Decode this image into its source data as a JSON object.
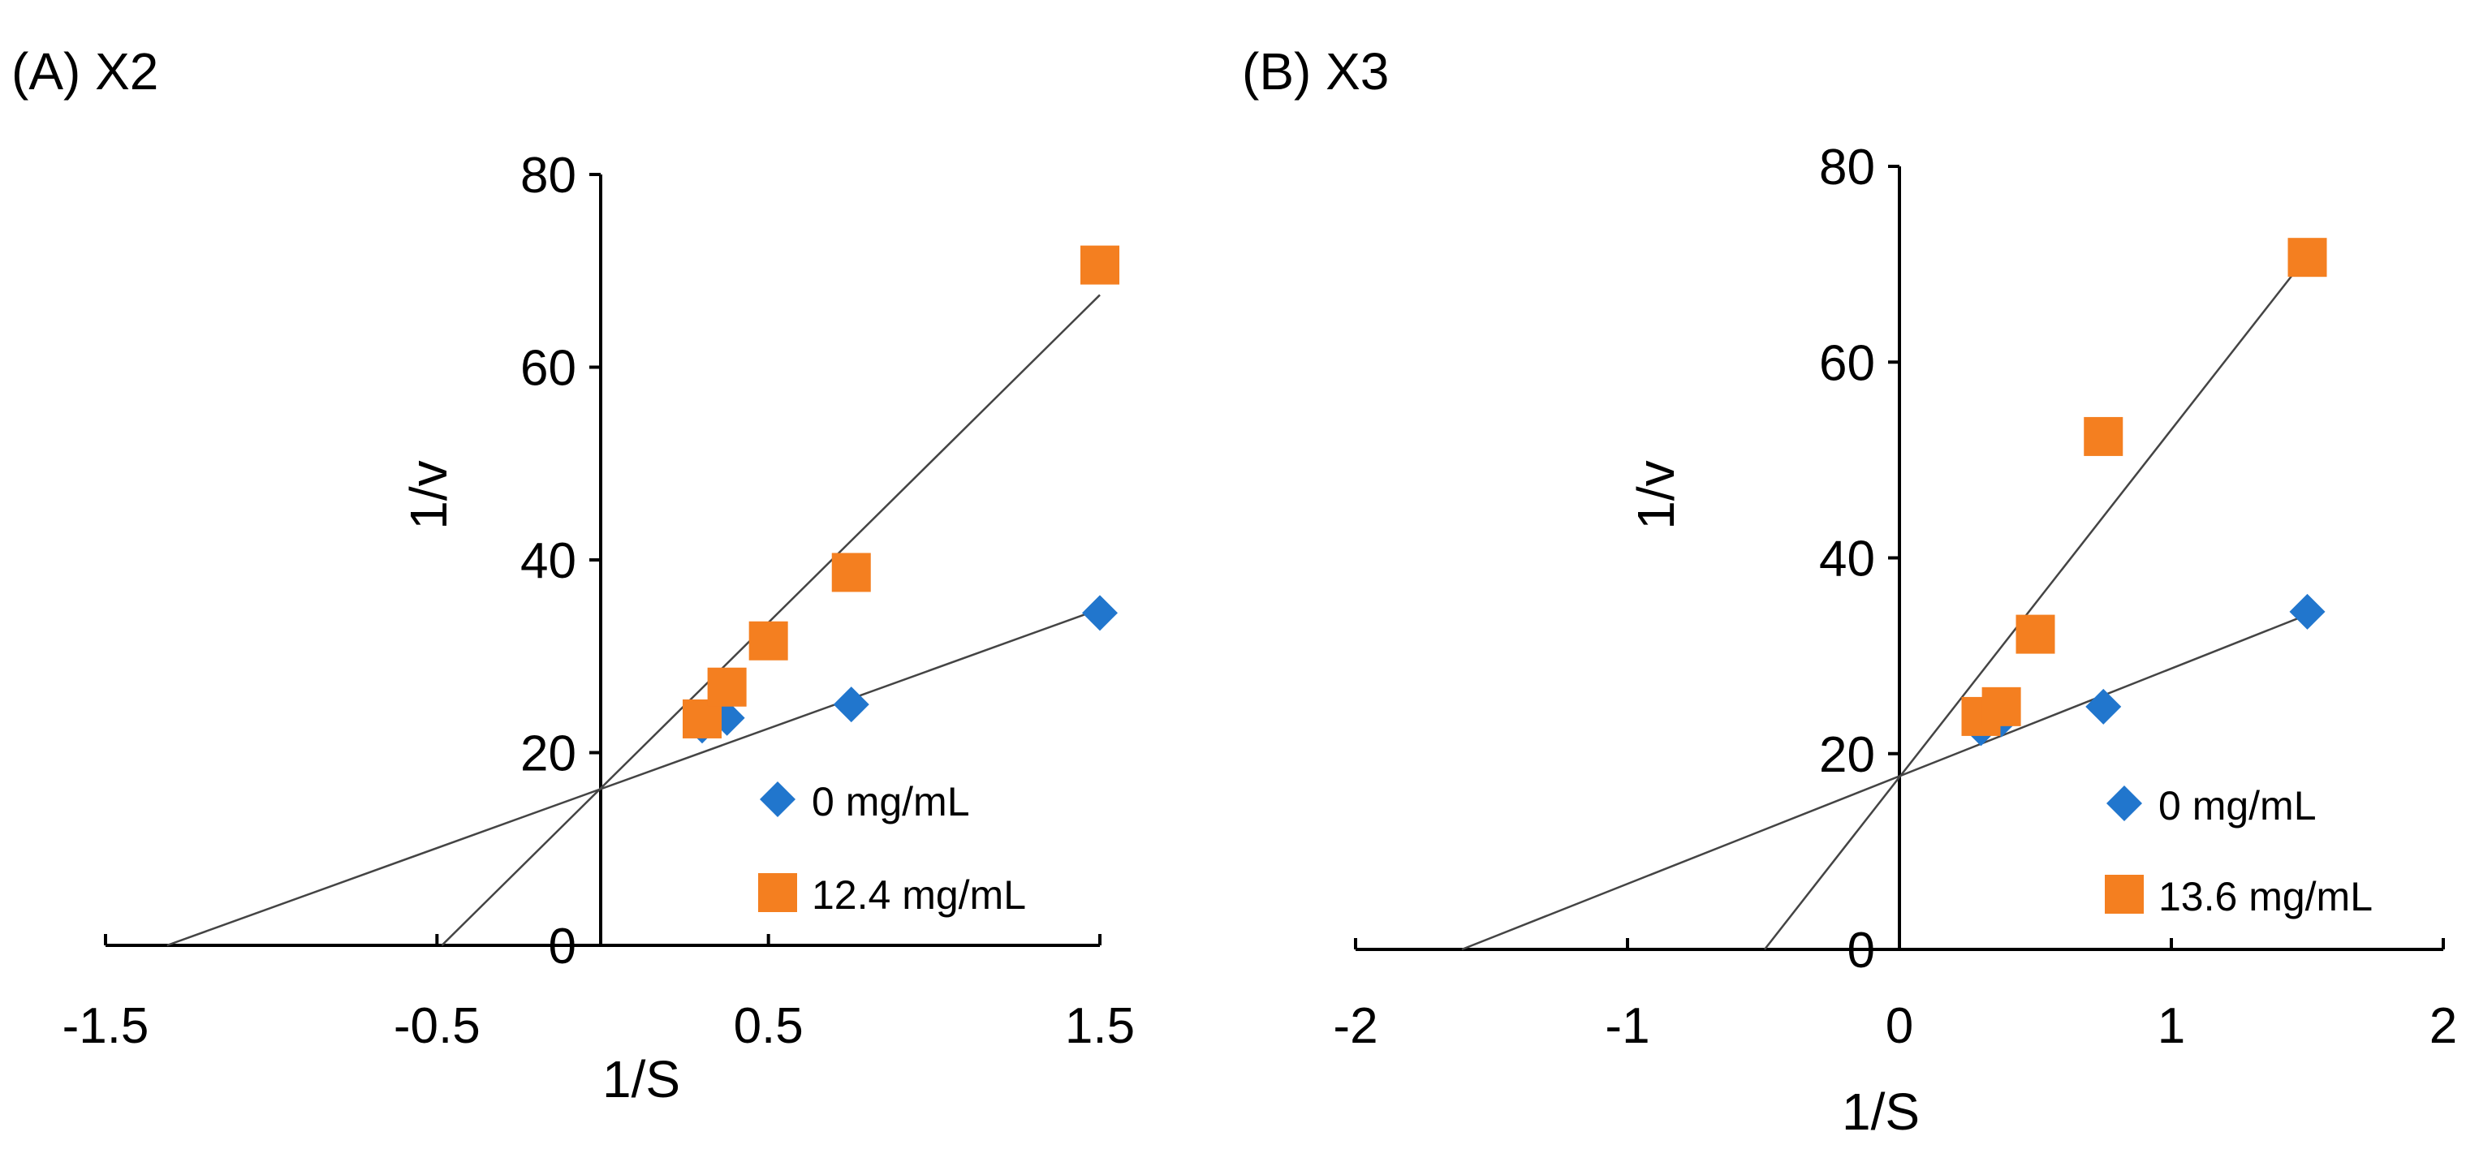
{
  "chart_data": [
    {
      "type": "scatter",
      "panel_label": "(A) X2",
      "xlabel": "1/S",
      "ylabel": "1/v",
      "xlim": [
        -1.5,
        1.5
      ],
      "ylim": [
        0,
        80
      ],
      "x_ticks": [
        -1.5,
        -0.5,
        0.5,
        1.5
      ],
      "x_tick_labels": [
        "-1.5",
        "-0.5",
        "0.5",
        "1.5"
      ],
      "y_ticks": [
        0,
        20,
        40,
        60,
        80
      ],
      "y_tick_labels": [
        "0",
        "20",
        "40",
        "60",
        "80"
      ],
      "grid": false,
      "legend_position": "bottom-right",
      "series": [
        {
          "name": "0 mg/mL",
          "marker": "diamond",
          "color": "#2176cd",
          "x": [
            0.3,
            0.375,
            0.75,
            1.5
          ],
          "y": [
            22.8,
            23.6,
            25.0,
            34.5
          ],
          "trendline": {
            "slope": 12.4,
            "intercept": 16.3
          }
        },
        {
          "name": "12.4 mg/mL",
          "marker": "square",
          "color": "#f47f20",
          "x": [
            0.3,
            0.375,
            0.5,
            0.75,
            1.5
          ],
          "y": [
            23.5,
            26.8,
            31.6,
            38.7,
            70.6
          ],
          "trendline": {
            "slope": 34.0,
            "intercept": 16.5
          }
        }
      ]
    },
    {
      "type": "scatter",
      "panel_label": "(B) X3",
      "xlabel": "1/S",
      "ylabel": "1/v",
      "xlim": [
        -2,
        2
      ],
      "ylim": [
        0,
        80
      ],
      "x_ticks": [
        -2,
        -1,
        0,
        1,
        2
      ],
      "x_tick_labels": [
        "-2",
        "-1",
        "0",
        "1",
        "2"
      ],
      "y_ticks": [
        0,
        20,
        40,
        60,
        80
      ],
      "y_tick_labels": [
        "0",
        "20",
        "40",
        "60",
        "80"
      ],
      "grid": false,
      "legend_position": "bottom-right",
      "series": [
        {
          "name": "0 mg/mL",
          "marker": "diamond",
          "color": "#2176cd",
          "x": [
            0.3,
            0.375,
            0.75,
            1.5
          ],
          "y": [
            22.6,
            23.5,
            24.8,
            34.5
          ],
          "trendline": {
            "slope": 11.0,
            "intercept": 17.7
          }
        },
        {
          "name": "13.6 mg/mL",
          "marker": "square",
          "color": "#f47f20",
          "x": [
            0.3,
            0.375,
            0.5,
            0.75,
            1.5
          ],
          "y": [
            23.8,
            24.8,
            32.2,
            52.4,
            70.7
          ],
          "trendline": {
            "slope": 35.5,
            "intercept": 17.6
          }
        }
      ]
    }
  ]
}
